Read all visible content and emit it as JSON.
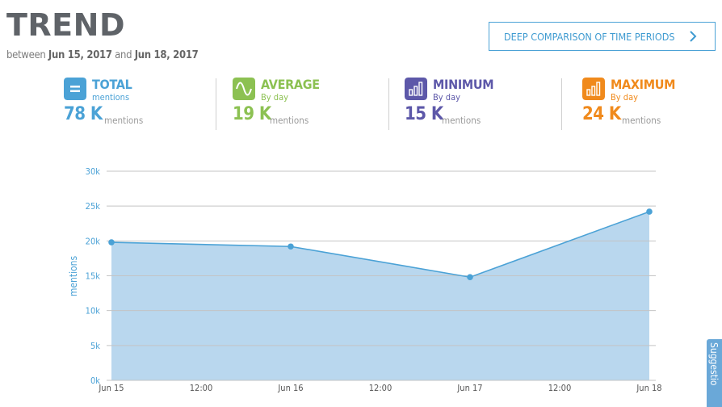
{
  "header": {
    "title": "TREND",
    "subtitle_prefix": "between",
    "date_from": "Jun 15, 2017",
    "subtitle_and": "and",
    "date_to": "Jun 18, 2017",
    "deep_button_label": "DEEP COMPARISON OF TIME PERIODS"
  },
  "stats": [
    {
      "label": "TOTAL",
      "sublabel": "mentions",
      "value": "78 K",
      "unit": "",
      "color": "#4ba2d6",
      "icon": "equals-icon"
    },
    {
      "label": "AVERAGE",
      "sublabel": "By day",
      "value": "19 K",
      "unit": "mentions",
      "color": "#8cc152",
      "icon": "wave-icon"
    },
    {
      "label": "MINIMUM",
      "sublabel": "By day",
      "value": "15 K",
      "unit": "mentions",
      "color": "#5d58a9",
      "icon": "bar-chart-icon"
    },
    {
      "label": "MAXIMUM",
      "sublabel": "By day",
      "value": "24 K",
      "unit": "mentions",
      "color": "#f08a1c",
      "icon": "bar-chart-icon"
    }
  ],
  "side_tab": {
    "label": "Suggestio"
  },
  "chart_data": {
    "type": "area",
    "ylabel": "mentions",
    "ylim": [
      0,
      30000
    ],
    "yticks": [
      "0k",
      "5k",
      "10k",
      "15k",
      "20k",
      "25k",
      "30k"
    ],
    "xticks": [
      "Jun 15",
      "12:00",
      "Jun 16",
      "12:00",
      "Jun 17",
      "12:00",
      "Jun 18"
    ],
    "points": [
      {
        "x": "Jun 15",
        "y": 19800
      },
      {
        "x": "Jun 16",
        "y": 19200
      },
      {
        "x": "Jun 17",
        "y": 14800
      },
      {
        "x": "Jun 18",
        "y": 24200
      }
    ],
    "line_color": "#4ba2d6",
    "fill_color": "#b9d7ee",
    "grid": true
  }
}
